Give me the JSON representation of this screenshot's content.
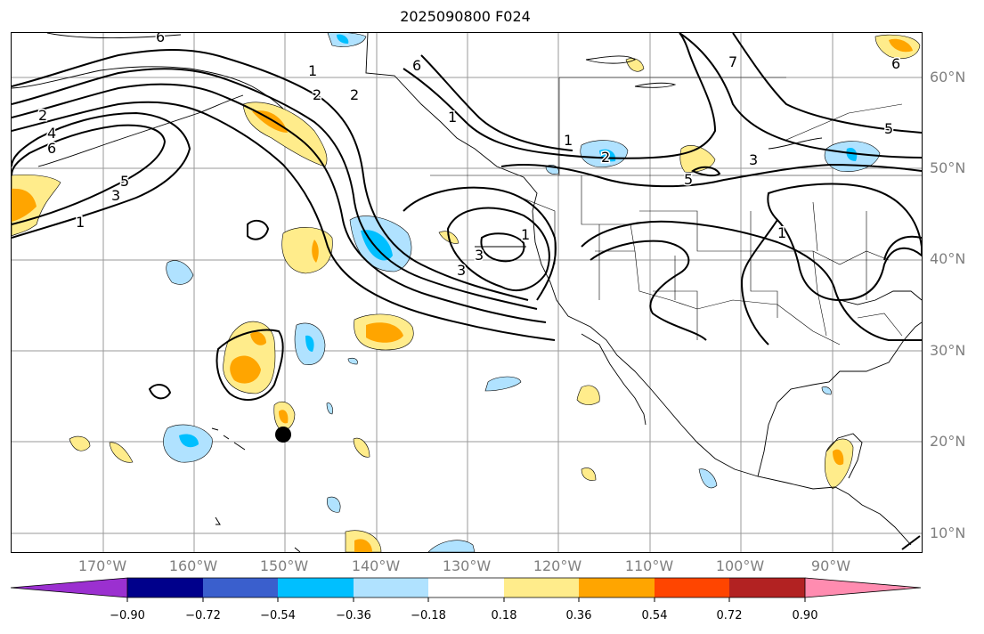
{
  "title": "2025090800 F024",
  "lat_labels": [
    "60°N",
    "50°N",
    "40°N",
    "30°N",
    "20°N",
    "10°N"
  ],
  "lon_labels": [
    "170°W",
    "160°W",
    "150°W",
    "140°W",
    "130°W",
    "120°W",
    "110°W",
    "100°W",
    "90°W"
  ],
  "contour_labels": [
    "6",
    "2",
    "4",
    "6",
    "3",
    "5",
    "1",
    "1",
    "2",
    "2",
    "6",
    "1",
    "2",
    "3",
    "3",
    "1",
    "5",
    "7",
    "6",
    "5",
    "3",
    "1",
    "1"
  ],
  "colorbar": {
    "ticks": [
      "−0.90",
      "−0.72",
      "−0.54",
      "−0.36",
      "−0.18",
      "0.18",
      "0.36",
      "0.54",
      "0.72",
      "0.90"
    ],
    "colors": [
      "#9b30d0",
      "#00008b",
      "#3a5fcd",
      "#00bfff",
      "#b0e2ff",
      "#ffffff",
      "#ffec8b",
      "#ffa500",
      "#ff4500",
      "#b22222",
      "#ff8cb0"
    ]
  }
}
